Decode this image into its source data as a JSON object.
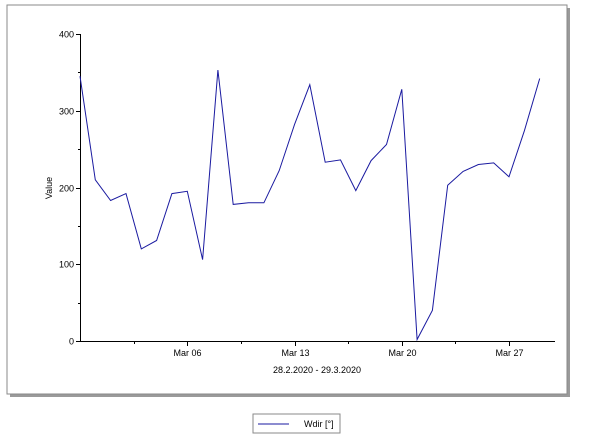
{
  "chart_data": {
    "type": "line",
    "title": "",
    "xlabel": "28.2.2020 - 29.3.2020",
    "ylabel": "Value",
    "ylim": [
      0,
      400
    ],
    "yticks": [
      0,
      100,
      200,
      300,
      400
    ],
    "xlim": [
      "2020-02-28",
      "2020-03-30"
    ],
    "xticks": [
      {
        "date": "2020-03-06",
        "label": "Mar 06"
      },
      {
        "date": "2020-03-13",
        "label": "Mar 13"
      },
      {
        "date": "2020-03-20",
        "label": "Mar 20"
      },
      {
        "date": "2020-03-27",
        "label": "Mar 27"
      }
    ],
    "grid": false,
    "legend_position": "bottom-center",
    "series": [
      {
        "name": "Wdir [°]",
        "color": "#1a1aa0",
        "points": [
          [
            "2020-02-28",
            345
          ],
          [
            "2020-02-29",
            210
          ],
          [
            "2020-03-01",
            183
          ],
          [
            "2020-03-02",
            192
          ],
          [
            "2020-03-03",
            120
          ],
          [
            "2020-03-04",
            131
          ],
          [
            "2020-03-05",
            192
          ],
          [
            "2020-03-06",
            195
          ],
          [
            "2020-03-07",
            106
          ],
          [
            "2020-03-08",
            353
          ],
          [
            "2020-03-09",
            178
          ],
          [
            "2020-03-10",
            180
          ],
          [
            "2020-03-11",
            180
          ],
          [
            "2020-03-12",
            222
          ],
          [
            "2020-03-13",
            282
          ],
          [
            "2020-03-14",
            334
          ],
          [
            "2020-03-15",
            233
          ],
          [
            "2020-03-16",
            236
          ],
          [
            "2020-03-17",
            196
          ],
          [
            "2020-03-18",
            235
          ],
          [
            "2020-03-19",
            256
          ],
          [
            "2020-03-20",
            328
          ],
          [
            "2020-03-21",
            2
          ],
          [
            "2020-03-22",
            40
          ],
          [
            "2020-03-23",
            203
          ],
          [
            "2020-03-24",
            221
          ],
          [
            "2020-03-25",
            230
          ],
          [
            "2020-03-26",
            232
          ],
          [
            "2020-03-27",
            214
          ],
          [
            "2020-03-28",
            274
          ],
          [
            "2020-03-29",
            342
          ]
        ]
      }
    ]
  }
}
